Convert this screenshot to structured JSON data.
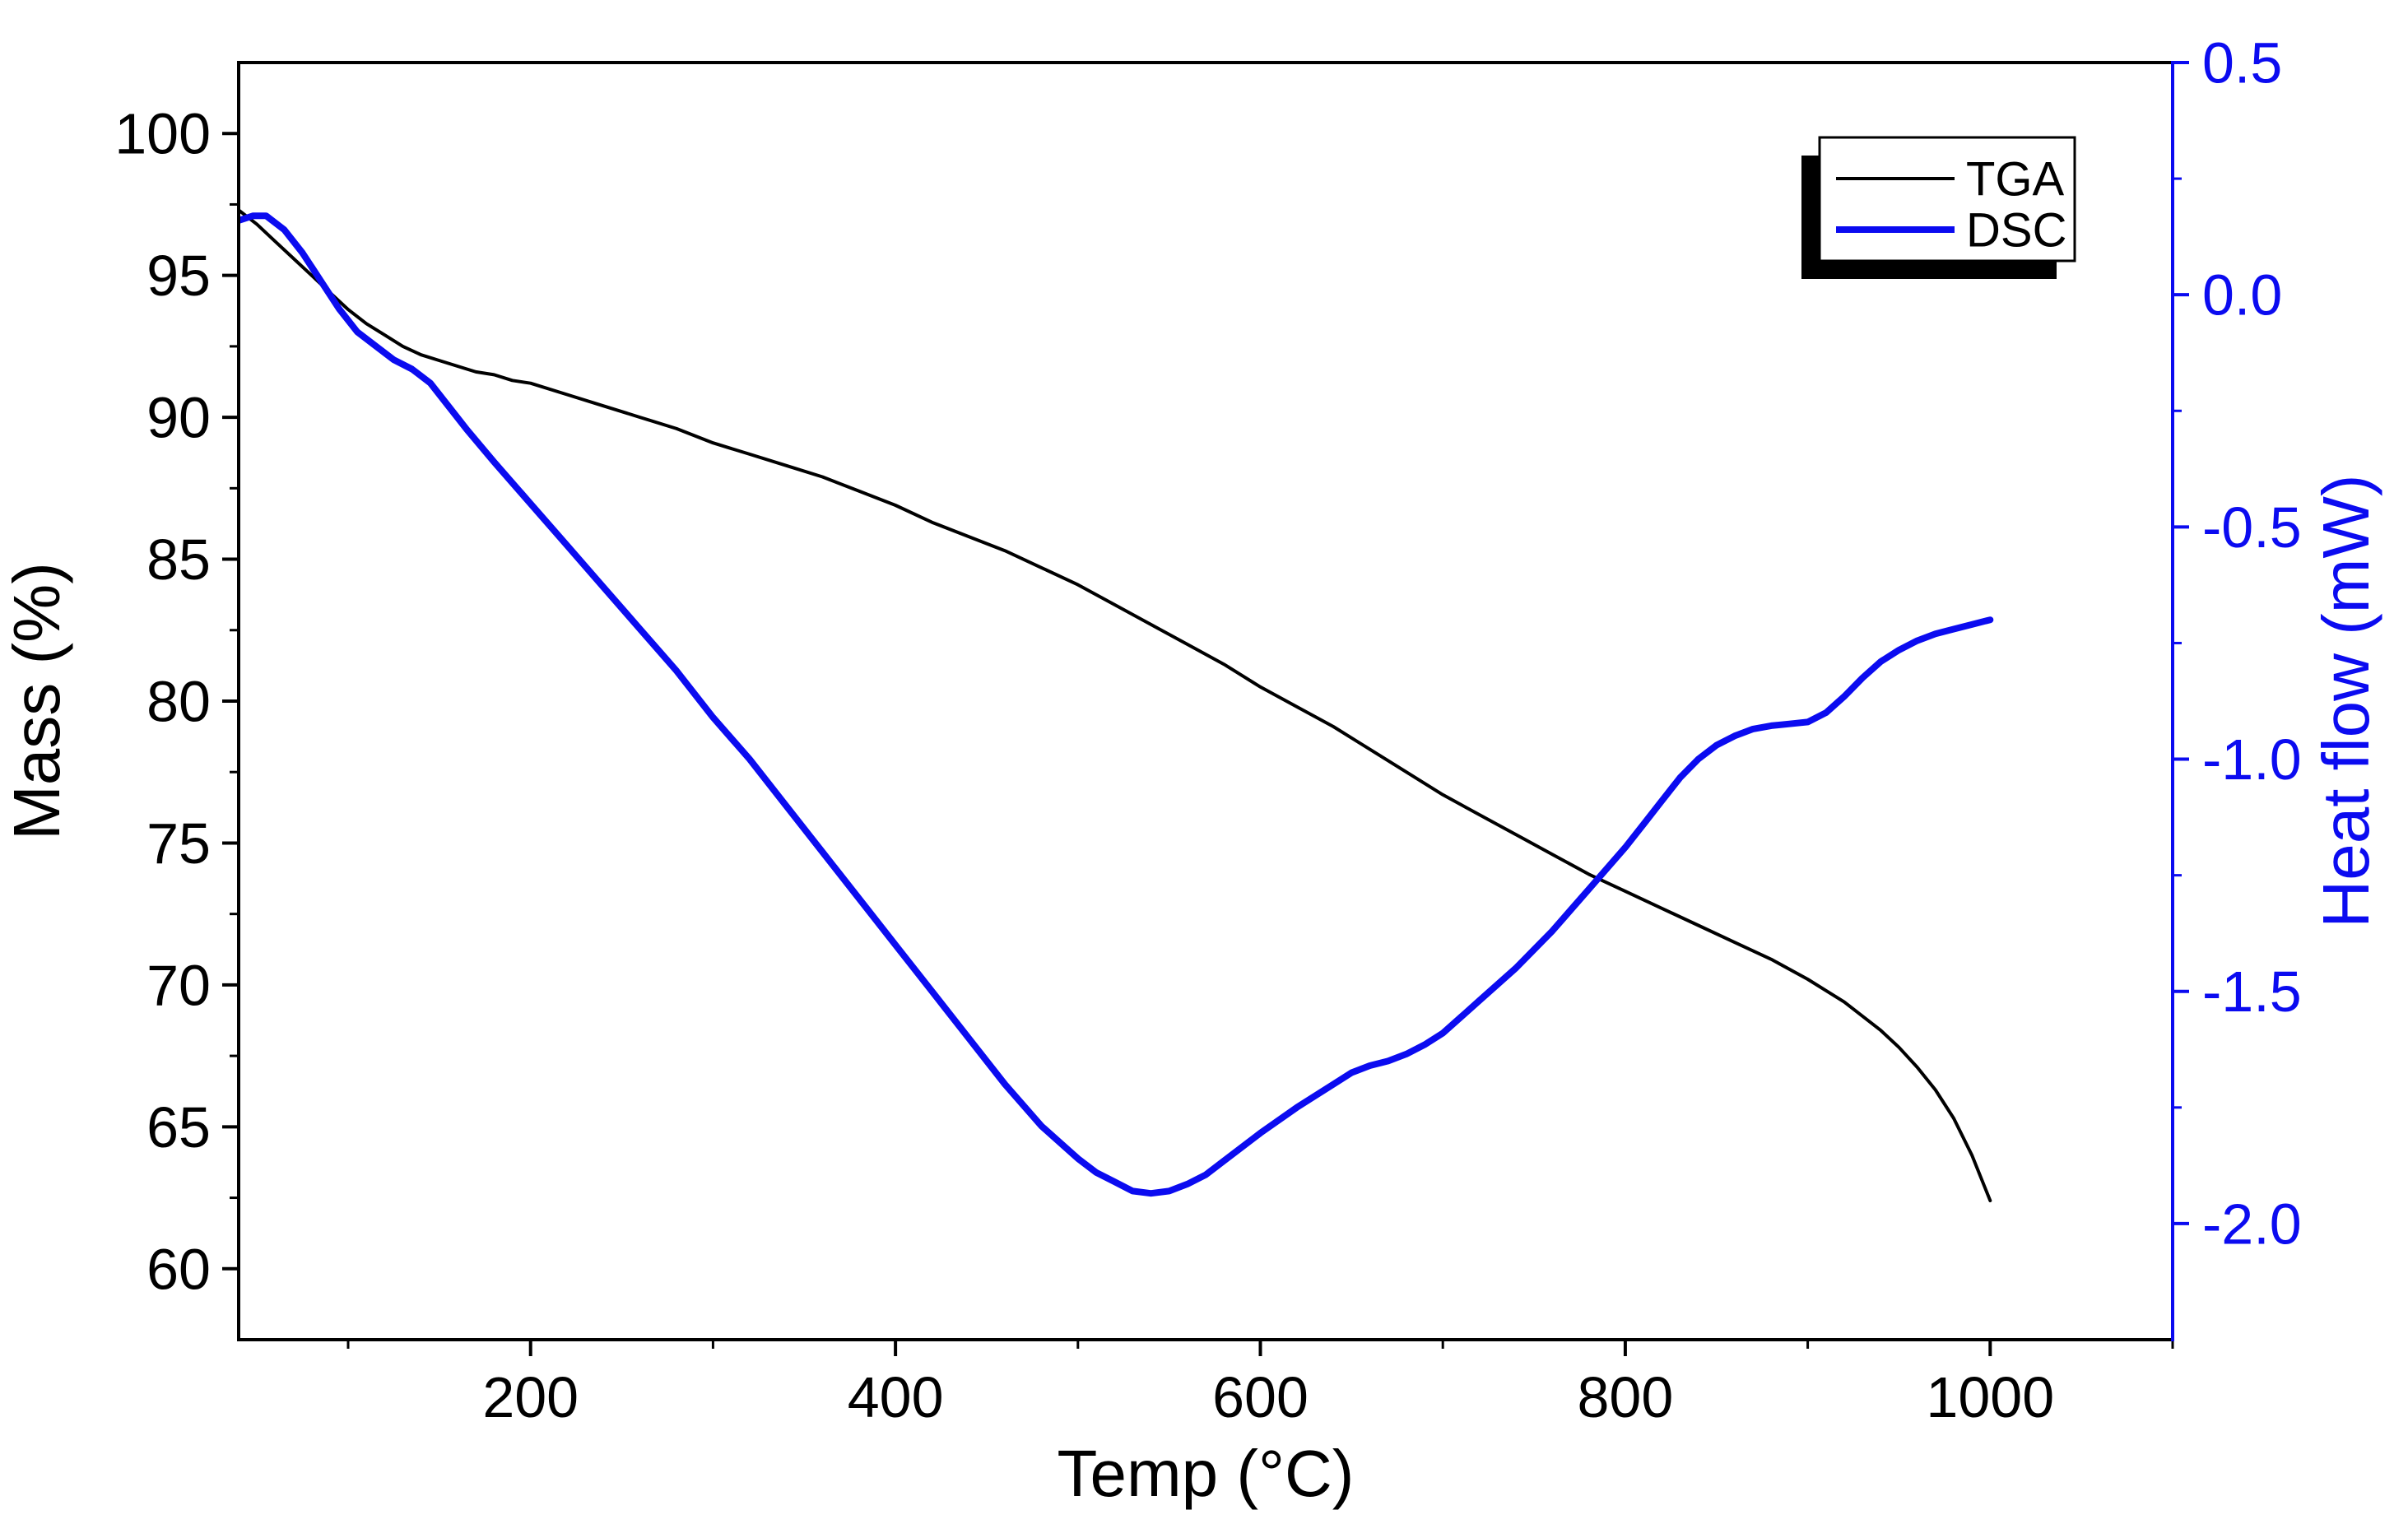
{
  "figure": {
    "background": "#ffffff"
  },
  "chart_data": {
    "type": "line",
    "title": "",
    "xlabel": "Temp (°C)",
    "ylabel_left": "Mass (%)",
    "ylabel_right": "Heat flow (mW)",
    "xlim": [
      40,
      1100
    ],
    "ylim_left": [
      57.5,
      102.5
    ],
    "ylim_right": [
      -2.25,
      0.5
    ],
    "grid": false,
    "legend_position": "top-right",
    "colors": {
      "left_axis": "#000000",
      "right_axis": "#0b0bf0",
      "frame": "#000000"
    },
    "x_ticks": [
      200,
      400,
      600,
      800,
      1000
    ],
    "x_tick_labels": [
      "200",
      "400",
      "600",
      "800",
      "1000"
    ],
    "x_minor_ticks": [
      100,
      300,
      500,
      700,
      900,
      1100
    ],
    "y_left_ticks": [
      100,
      95,
      90,
      85,
      80,
      75,
      70,
      65,
      60
    ],
    "y_left_tick_labels": [
      "100",
      "95",
      "90",
      "85",
      "80",
      "75",
      "70",
      "65",
      "60"
    ],
    "y_left_minor_ticks": [
      97.5,
      92.5,
      87.5,
      82.5,
      77.5,
      72.5,
      67.5,
      62.5
    ],
    "y_right_ticks": [
      0.5,
      0.0,
      -0.5,
      -1.0,
      -1.5,
      -2.0
    ],
    "y_right_tick_labels": [
      "0.5",
      "0.0",
      "-0.5",
      "-1.0",
      "-1.5",
      "-2.0"
    ],
    "y_right_minor_ticks": [
      0.25,
      -0.25,
      -0.75,
      -1.25,
      -1.75
    ],
    "series": [
      {
        "name": "TGA",
        "axis": "left",
        "color": "#000000",
        "width": 4,
        "points": [
          [
            40,
            97.3
          ],
          [
            50,
            96.8
          ],
          [
            60,
            96.2
          ],
          [
            70,
            95.6
          ],
          [
            80,
            95.0
          ],
          [
            90,
            94.4
          ],
          [
            100,
            93.8
          ],
          [
            110,
            93.3
          ],
          [
            120,
            92.9
          ],
          [
            130,
            92.5
          ],
          [
            140,
            92.2
          ],
          [
            150,
            92.0
          ],
          [
            160,
            91.8
          ],
          [
            170,
            91.6
          ],
          [
            180,
            91.5
          ],
          [
            190,
            91.3
          ],
          [
            200,
            91.2
          ],
          [
            220,
            90.8
          ],
          [
            240,
            90.4
          ],
          [
            260,
            90.0
          ],
          [
            280,
            89.6
          ],
          [
            300,
            89.1
          ],
          [
            320,
            88.7
          ],
          [
            340,
            88.3
          ],
          [
            360,
            87.9
          ],
          [
            380,
            87.4
          ],
          [
            400,
            86.9
          ],
          [
            420,
            86.3
          ],
          [
            440,
            85.8
          ],
          [
            460,
            85.3
          ],
          [
            480,
            84.7
          ],
          [
            500,
            84.1
          ],
          [
            520,
            83.4
          ],
          [
            540,
            82.7
          ],
          [
            560,
            82.0
          ],
          [
            580,
            81.3
          ],
          [
            600,
            80.5
          ],
          [
            620,
            79.8
          ],
          [
            640,
            79.1
          ],
          [
            660,
            78.3
          ],
          [
            680,
            77.5
          ],
          [
            700,
            76.7
          ],
          [
            720,
            76.0
          ],
          [
            740,
            75.3
          ],
          [
            760,
            74.6
          ],
          [
            780,
            73.9
          ],
          [
            800,
            73.3
          ],
          [
            820,
            72.7
          ],
          [
            840,
            72.1
          ],
          [
            860,
            71.5
          ],
          [
            880,
            70.9
          ],
          [
            900,
            70.2
          ],
          [
            910,
            69.8
          ],
          [
            920,
            69.4
          ],
          [
            930,
            68.9
          ],
          [
            940,
            68.4
          ],
          [
            950,
            67.8
          ],
          [
            960,
            67.1
          ],
          [
            970,
            66.3
          ],
          [
            980,
            65.3
          ],
          [
            990,
            64.0
          ],
          [
            1000,
            62.4
          ]
        ]
      },
      {
        "name": "DSC",
        "axis": "right",
        "color": "#0b0bf0",
        "width": 8,
        "points": [
          [
            40,
            0.16
          ],
          [
            48,
            0.17
          ],
          [
            55,
            0.17
          ],
          [
            65,
            0.14
          ],
          [
            75,
            0.09
          ],
          [
            85,
            0.03
          ],
          [
            95,
            -0.03
          ],
          [
            105,
            -0.08
          ],
          [
            115,
            -0.11
          ],
          [
            125,
            -0.14
          ],
          [
            135,
            -0.16
          ],
          [
            145,
            -0.19
          ],
          [
            155,
            -0.24
          ],
          [
            165,
            -0.29
          ],
          [
            180,
            -0.36
          ],
          [
            200,
            -0.45
          ],
          [
            220,
            -0.54
          ],
          [
            240,
            -0.63
          ],
          [
            260,
            -0.72
          ],
          [
            280,
            -0.81
          ],
          [
            300,
            -0.91
          ],
          [
            320,
            -1.0
          ],
          [
            340,
            -1.1
          ],
          [
            360,
            -1.2
          ],
          [
            380,
            -1.3
          ],
          [
            400,
            -1.4
          ],
          [
            420,
            -1.5
          ],
          [
            440,
            -1.6
          ],
          [
            460,
            -1.7
          ],
          [
            480,
            -1.79
          ],
          [
            500,
            -1.86
          ],
          [
            510,
            -1.89
          ],
          [
            520,
            -1.91
          ],
          [
            530,
            -1.93
          ],
          [
            540,
            -1.935
          ],
          [
            550,
            -1.93
          ],
          [
            560,
            -1.915
          ],
          [
            570,
            -1.895
          ],
          [
            580,
            -1.865
          ],
          [
            600,
            -1.805
          ],
          [
            620,
            -1.75
          ],
          [
            640,
            -1.7
          ],
          [
            650,
            -1.675
          ],
          [
            660,
            -1.66
          ],
          [
            670,
            -1.65
          ],
          [
            680,
            -1.635
          ],
          [
            690,
            -1.615
          ],
          [
            700,
            -1.59
          ],
          [
            710,
            -1.555
          ],
          [
            720,
            -1.52
          ],
          [
            740,
            -1.45
          ],
          [
            760,
            -1.37
          ],
          [
            780,
            -1.28
          ],
          [
            800,
            -1.19
          ],
          [
            810,
            -1.14
          ],
          [
            820,
            -1.09
          ],
          [
            830,
            -1.04
          ],
          [
            840,
            -1.0
          ],
          [
            850,
            -0.97
          ],
          [
            860,
            -0.95
          ],
          [
            870,
            -0.935
          ],
          [
            880,
            -0.928
          ],
          [
            890,
            -0.924
          ],
          [
            900,
            -0.92
          ],
          [
            910,
            -0.9
          ],
          [
            920,
            -0.865
          ],
          [
            930,
            -0.825
          ],
          [
            940,
            -0.79
          ],
          [
            950,
            -0.765
          ],
          [
            960,
            -0.745
          ],
          [
            970,
            -0.73
          ],
          [
            980,
            -0.72
          ],
          [
            990,
            -0.71
          ],
          [
            1000,
            -0.7
          ]
        ]
      }
    ]
  }
}
